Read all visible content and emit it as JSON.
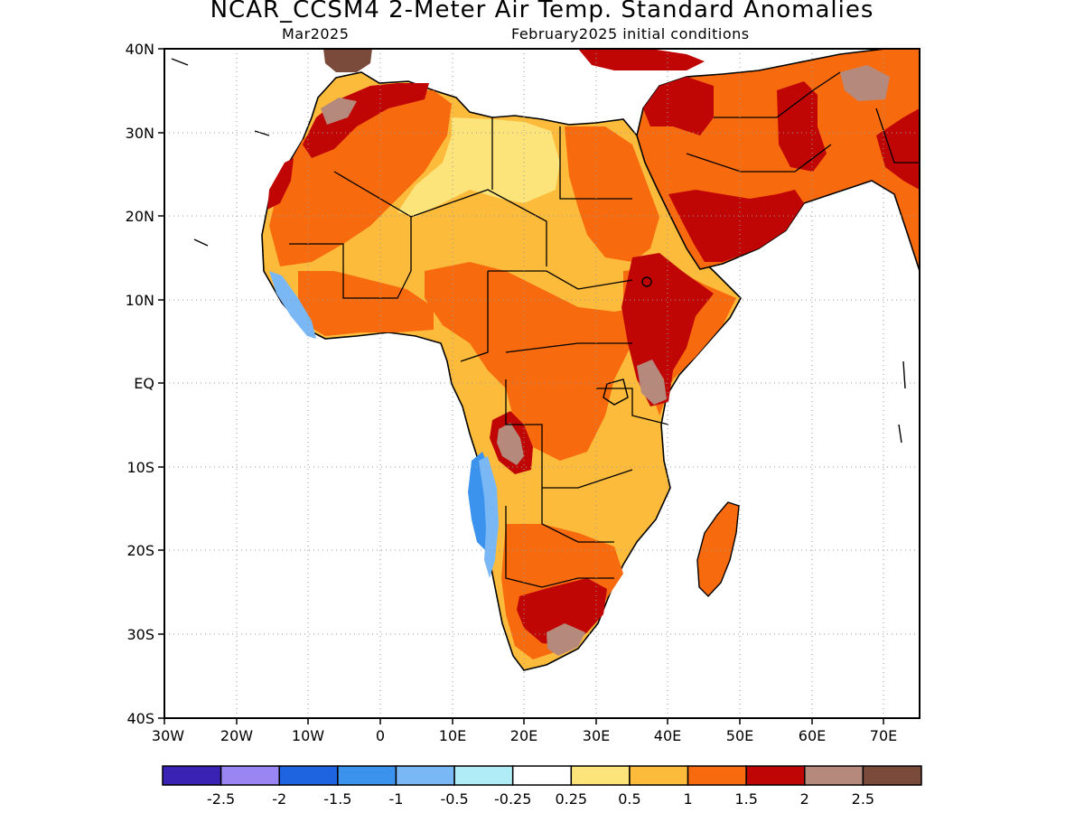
{
  "title": "NCAR_CCSM4 2-Meter Air Temp. Standard Anomalies",
  "subtitle_left": "Mar2025",
  "subtitle_right": "February2025 initial conditions",
  "axes": {
    "lat_labels": [
      "40N",
      "30N",
      "20N",
      "10N",
      "EQ",
      "10S",
      "20S",
      "30S",
      "40S"
    ],
    "lon_labels": [
      "30W",
      "20W",
      "10W",
      "0",
      "10E",
      "20E",
      "30E",
      "40E",
      "50E",
      "60E",
      "70E"
    ],
    "lat_range": [
      -40,
      40
    ],
    "lon_range": [
      -30,
      75
    ],
    "grid": "dotted"
  },
  "colorbar": {
    "colors": [
      "#3a22b4",
      "#9a86f2",
      "#1e63e0",
      "#3c93ee",
      "#7ab8f5",
      "#b0ecf6",
      "#ffffff",
      "#fde47a",
      "#fdbb3c",
      "#f86a0e",
      "#c00505",
      "#b58a7c",
      "#7a4a3a"
    ],
    "labels": [
      "-2.5",
      "-2",
      "-1.5",
      "-1",
      "-0.5",
      "-0.25",
      "0.25",
      "0.5",
      "1",
      "1.5",
      "2",
      "2.5"
    ]
  },
  "map": {
    "region": "Africa and Arabian Peninsula",
    "field": "2-meter air temperature standard anomaly"
  }
}
